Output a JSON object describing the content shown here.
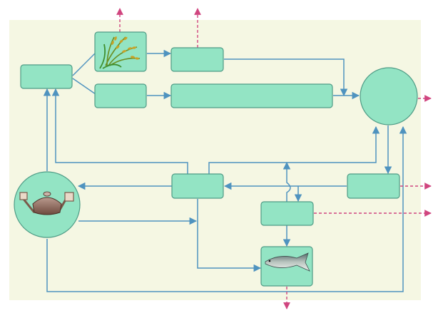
{
  "diagram": {
    "background_color": "#f5f7e3",
    "node_fill": "#93e4c4",
    "node_stroke": "#4f9c86",
    "flow_color": "#4f93bf",
    "output_color": "#d0457f",
    "nodes": [
      {
        "id": "node-left-top",
        "label": ""
      },
      {
        "id": "node-rice",
        "label": "",
        "icon": "rice-plant-icon"
      },
      {
        "id": "node-top-mid",
        "label": ""
      },
      {
        "id": "node-left-mid",
        "label": ""
      },
      {
        "id": "node-long-bar",
        "label": ""
      },
      {
        "id": "node-circle-right",
        "label": ""
      },
      {
        "id": "node-digester",
        "label": "",
        "icon": "biogas-digester-icon"
      },
      {
        "id": "node-center",
        "label": ""
      },
      {
        "id": "node-right-small",
        "label": ""
      },
      {
        "id": "node-lower-mid",
        "label": ""
      },
      {
        "id": "node-fish",
        "label": "",
        "icon": "fish-icon"
      }
    ]
  }
}
